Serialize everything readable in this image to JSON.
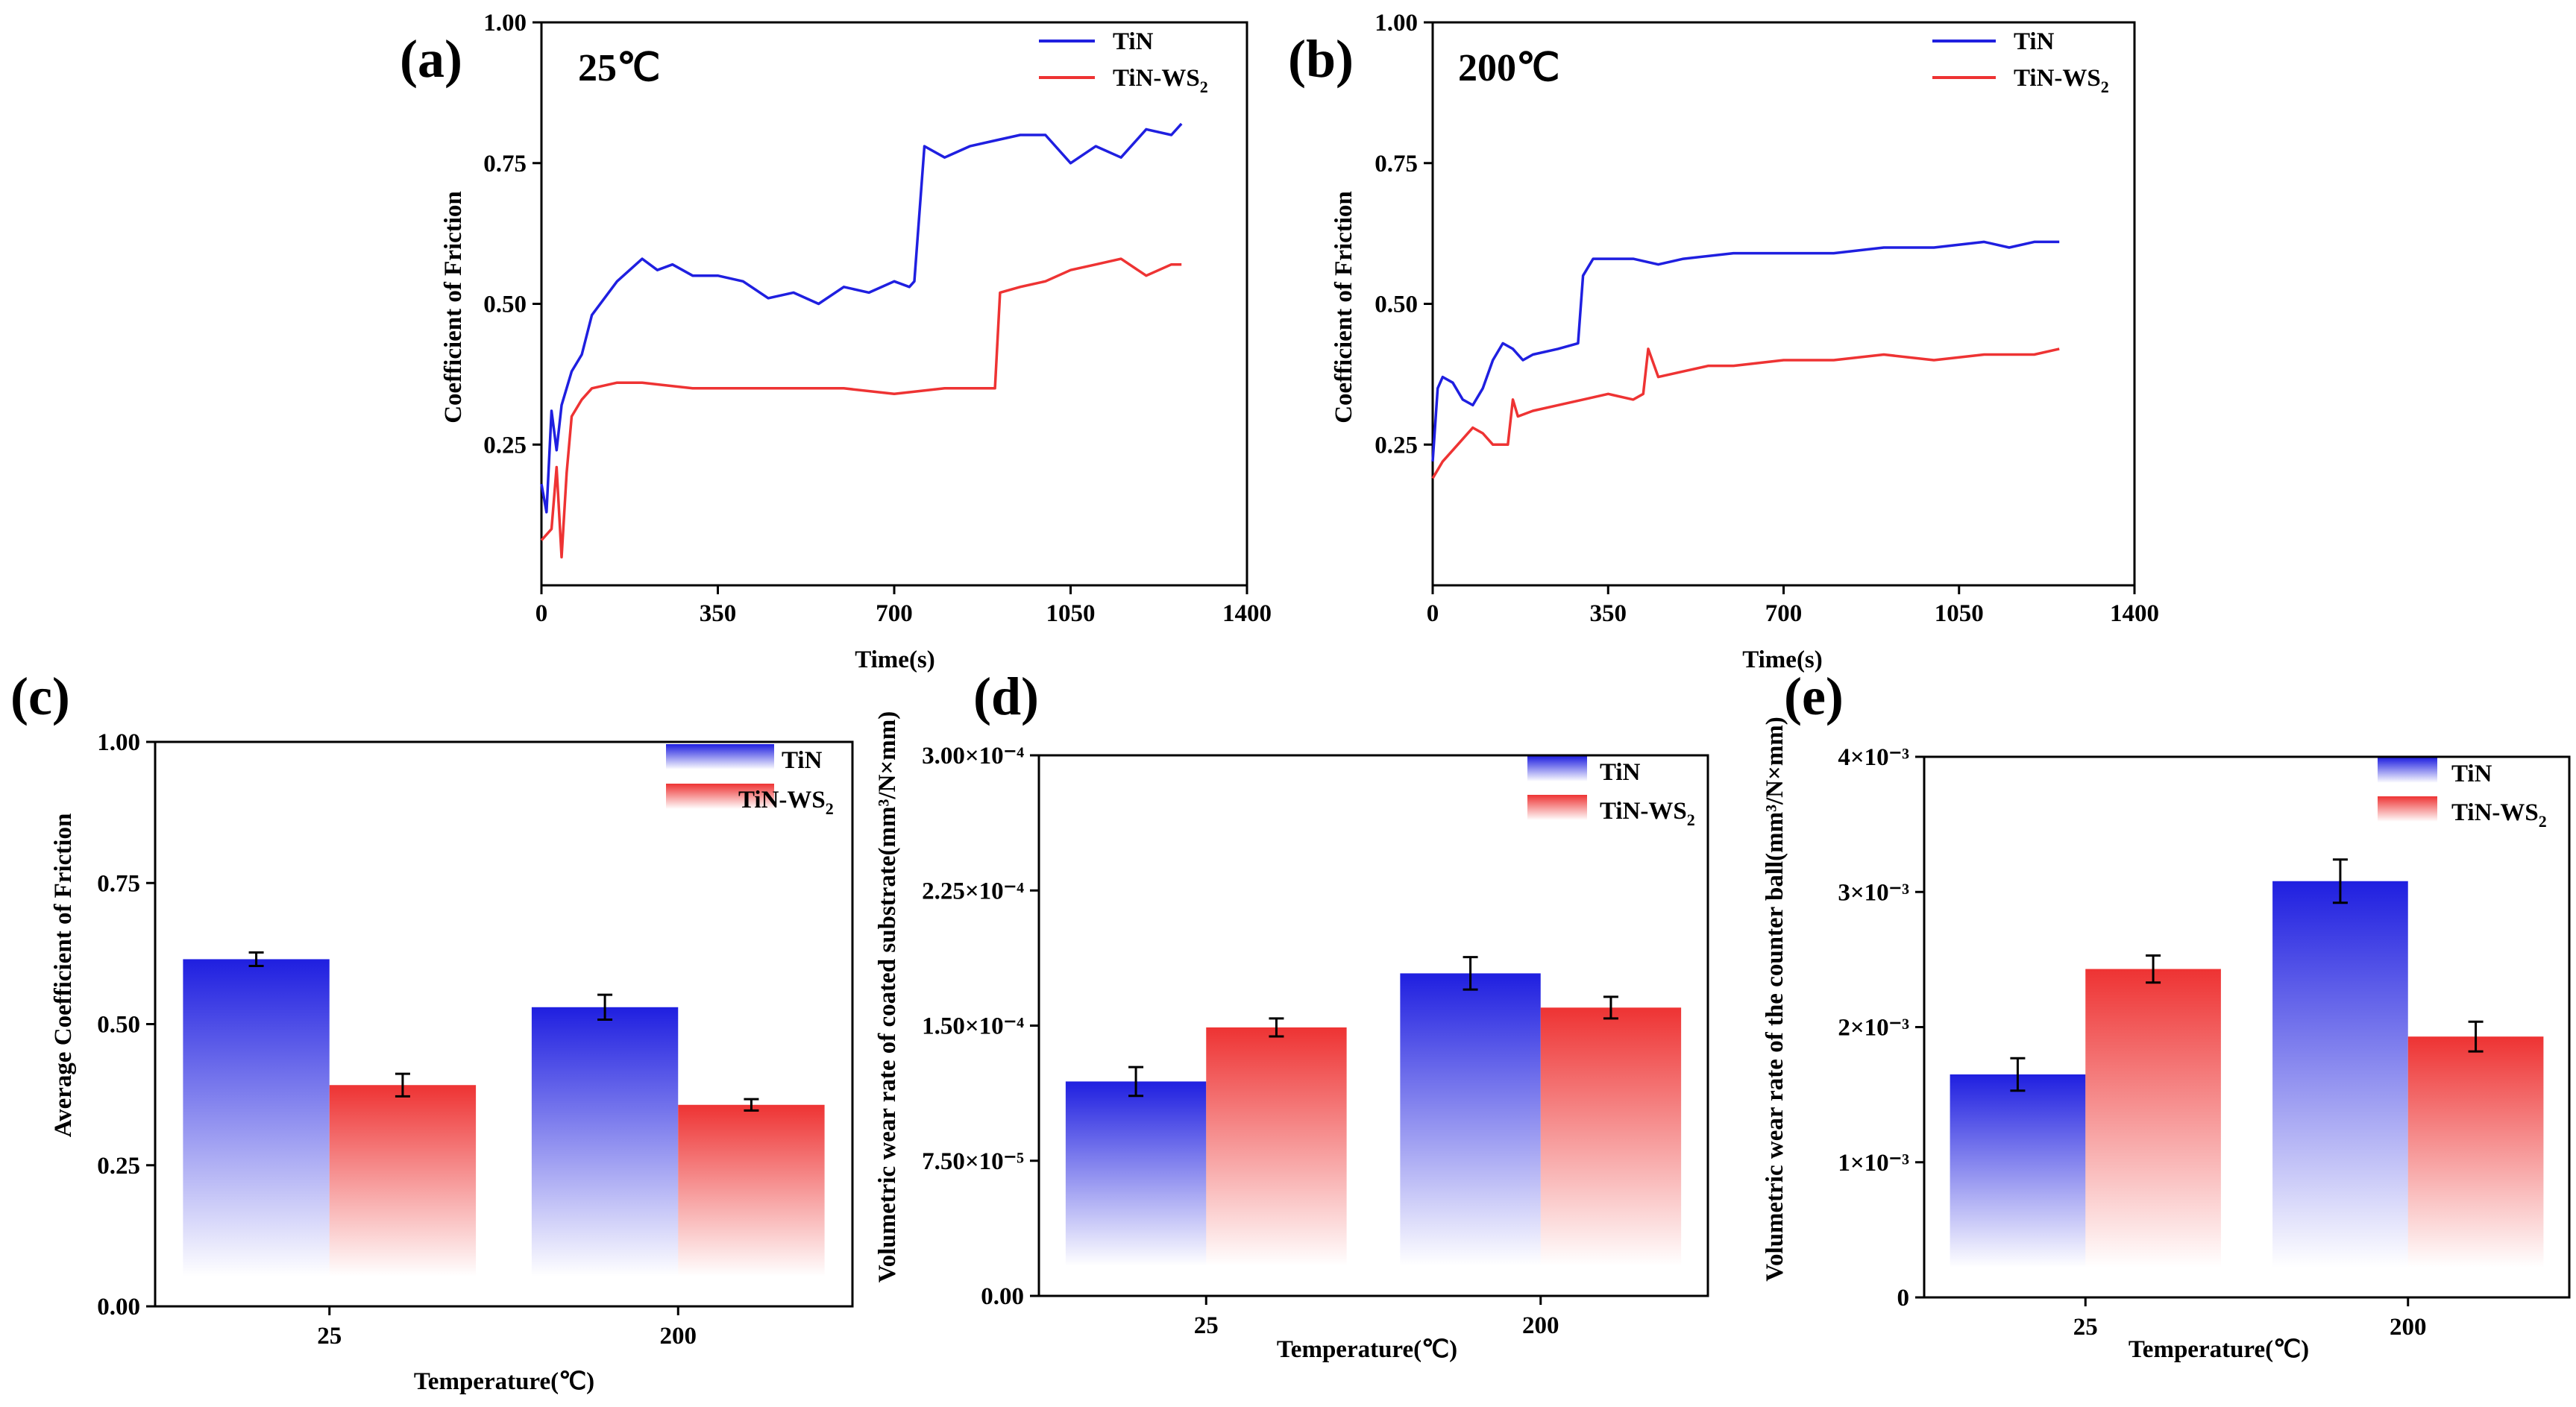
{
  "colors": {
    "tin": "#1f1fe0",
    "tinws2": "#ee3333",
    "axis": "#000000"
  },
  "legend": {
    "tin": "TiN",
    "tinws2_base": "TiN-WS",
    "tinws2_sub": "2"
  },
  "chart_data": [
    {
      "id": "a",
      "type": "line",
      "panel_label": "(a)",
      "annotation": "25℃",
      "xlabel": "Time(s)",
      "ylabel": "Coefficient of Friction",
      "xlim": [
        0,
        1400
      ],
      "ylim": [
        0,
        1.0
      ],
      "xticks": [
        "0",
        "350",
        "700",
        "1050",
        "1400"
      ],
      "yticks": [
        "0.25",
        "0.50",
        "0.75",
        "1.00"
      ],
      "series": [
        {
          "name": "TiN",
          "x": [
            0,
            10,
            20,
            30,
            40,
            60,
            80,
            100,
            150,
            200,
            230,
            260,
            300,
            350,
            400,
            450,
            500,
            550,
            600,
            650,
            700,
            730,
            740,
            760,
            800,
            850,
            900,
            950,
            1000,
            1050,
            1100,
            1150,
            1200,
            1250,
            1270
          ],
          "y": [
            0.18,
            0.13,
            0.31,
            0.24,
            0.32,
            0.38,
            0.41,
            0.48,
            0.54,
            0.58,
            0.56,
            0.57,
            0.55,
            0.55,
            0.54,
            0.51,
            0.52,
            0.5,
            0.53,
            0.52,
            0.54,
            0.53,
            0.54,
            0.78,
            0.76,
            0.78,
            0.79,
            0.8,
            0.8,
            0.75,
            0.78,
            0.76,
            0.81,
            0.8,
            0.82
          ]
        },
        {
          "name": "TiN-WS2",
          "x": [
            0,
            20,
            30,
            40,
            50,
            60,
            80,
            100,
            150,
            200,
            300,
            400,
            500,
            600,
            700,
            800,
            880,
            900,
            910,
            950,
            1000,
            1050,
            1100,
            1150,
            1200,
            1250,
            1270
          ],
          "y": [
            0.08,
            0.1,
            0.21,
            0.05,
            0.2,
            0.3,
            0.33,
            0.35,
            0.36,
            0.36,
            0.35,
            0.35,
            0.35,
            0.35,
            0.34,
            0.35,
            0.35,
            0.35,
            0.52,
            0.53,
            0.54,
            0.56,
            0.57,
            0.58,
            0.55,
            0.57,
            0.57
          ]
        }
      ]
    },
    {
      "id": "b",
      "type": "line",
      "panel_label": "(b)",
      "annotation": "200℃",
      "xlabel": "Time(s)",
      "ylabel": "Coefficient of Friction",
      "xlim": [
        0,
        1400
      ],
      "ylim": [
        0,
        1.0
      ],
      "xticks": [
        "0",
        "350",
        "700",
        "1050",
        "1400"
      ],
      "yticks": [
        "0.25",
        "0.50",
        "0.75",
        "1.00"
      ],
      "series": [
        {
          "name": "TiN",
          "x": [
            0,
            10,
            20,
            40,
            60,
            80,
            100,
            120,
            140,
            160,
            180,
            200,
            250,
            290,
            300,
            320,
            350,
            400,
            450,
            500,
            600,
            700,
            800,
            900,
            1000,
            1100,
            1150,
            1200,
            1250
          ],
          "y": [
            0.22,
            0.35,
            0.37,
            0.36,
            0.33,
            0.32,
            0.35,
            0.4,
            0.43,
            0.42,
            0.4,
            0.41,
            0.42,
            0.43,
            0.55,
            0.58,
            0.58,
            0.58,
            0.57,
            0.58,
            0.59,
            0.59,
            0.59,
            0.6,
            0.6,
            0.61,
            0.6,
            0.61,
            0.61
          ]
        },
        {
          "name": "TiN-WS2",
          "x": [
            0,
            20,
            50,
            80,
            100,
            120,
            140,
            150,
            160,
            170,
            200,
            250,
            300,
            350,
            400,
            420,
            430,
            450,
            500,
            550,
            600,
            700,
            800,
            900,
            1000,
            1100,
            1200,
            1250
          ],
          "y": [
            0.19,
            0.22,
            0.25,
            0.28,
            0.27,
            0.25,
            0.25,
            0.25,
            0.33,
            0.3,
            0.31,
            0.32,
            0.33,
            0.34,
            0.33,
            0.34,
            0.42,
            0.37,
            0.38,
            0.39,
            0.39,
            0.4,
            0.4,
            0.41,
            0.4,
            0.41,
            0.41,
            0.42
          ]
        }
      ]
    },
    {
      "id": "c",
      "type": "bar",
      "panel_label": "(c)",
      "xlabel": "Temperature(℃)",
      "ylabel": "Average Coefficient of Friction",
      "categories": [
        "25",
        "200"
      ],
      "ylim": [
        0,
        1.0
      ],
      "yticks": [
        "0.00",
        "0.25",
        "0.50",
        "0.75",
        "1.00"
      ],
      "series": [
        {
          "name": "TiN",
          "values": [
            0.615,
            0.53
          ],
          "errors": [
            0.012,
            0.022
          ]
        },
        {
          "name": "TiN-WS2",
          "values": [
            0.392,
            0.357
          ],
          "errors": [
            0.02,
            0.01
          ]
        }
      ]
    },
    {
      "id": "d",
      "type": "bar",
      "panel_label": "(d)",
      "xlabel": "Temperature(℃)",
      "ylabel": "Volumetric wear rate of coated substrate(mm³/N×mm)",
      "categories": [
        "25",
        "200"
      ],
      "ylim": [
        0,
        0.0003
      ],
      "yticks": [
        "0.00",
        "7.50×10⁻⁵",
        "1.50×10⁻⁴",
        "2.25×10⁻⁴",
        "3.00×10⁻⁴"
      ],
      "series": [
        {
          "name": "TiN",
          "values": [
            0.000119,
            0.000179
          ],
          "errors": [
            8e-06,
            9e-06
          ]
        },
        {
          "name": "TiN-WS2",
          "values": [
            0.000149,
            0.00016
          ],
          "errors": [
            5e-06,
            6e-06
          ]
        }
      ]
    },
    {
      "id": "e",
      "type": "bar",
      "panel_label": "(e)",
      "xlabel": "Temperature(℃)",
      "ylabel": "Volumetric wear rate of the counter ball(mm³/N×mm)",
      "categories": [
        "25",
        "200"
      ],
      "ylim": [
        0,
        0.004
      ],
      "yticks": [
        "0",
        "1×10⁻³",
        "2×10⁻³",
        "3×10⁻³",
        "4×10⁻³"
      ],
      "series": [
        {
          "name": "TiN",
          "values": [
            0.00165,
            0.00308
          ],
          "errors": [
            0.00012,
            0.00016
          ]
        },
        {
          "name": "TiN-WS2",
          "values": [
            0.00243,
            0.00193
          ],
          "errors": [
            0.0001,
            0.00011
          ]
        }
      ]
    }
  ]
}
